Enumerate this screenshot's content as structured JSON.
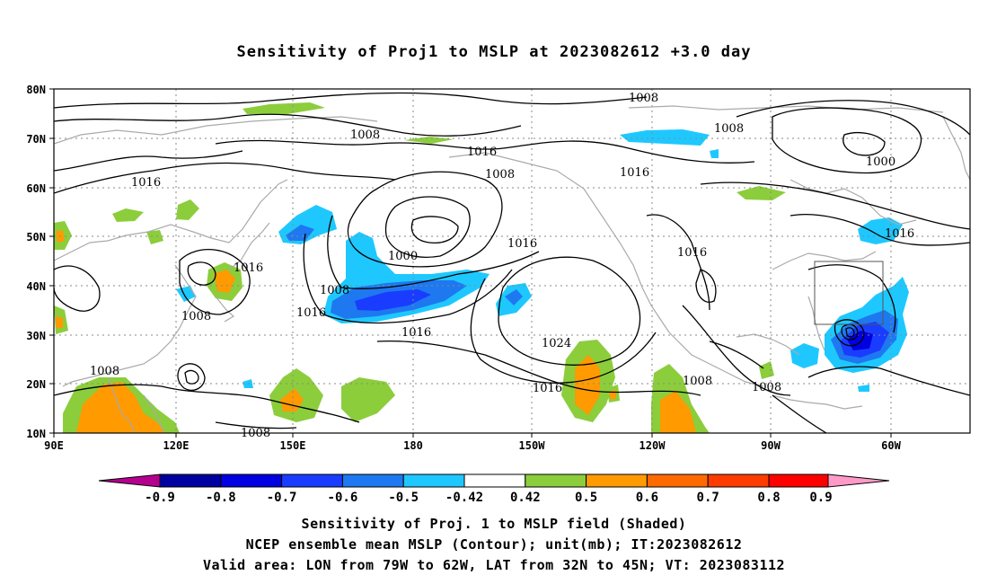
{
  "title": "Sensitivity of Proj1 to MSLP at 2023082612 +3.0 day",
  "lat_ticks": [
    "80N",
    "70N",
    "60N",
    "50N",
    "40N",
    "30N",
    "20N",
    "10N"
  ],
  "lon_ticks": [
    "90E",
    "120E",
    "150E",
    "180",
    "150W",
    "120W",
    "90W",
    "60W"
  ],
  "contour_labels": [
    "1008",
    "1008",
    "1016",
    "1016",
    "1008",
    "1016",
    "1008",
    "1000",
    "1016",
    "1016",
    "1000",
    "1016",
    "1008",
    "1008",
    "1016",
    "1016",
    "1016",
    "1016",
    "1024",
    "1008",
    "1008",
    "1008",
    "1016",
    "1008"
  ],
  "colorbar": {
    "labels": [
      "-0.9",
      "-0.8",
      "-0.7",
      "-0.6",
      "-0.5",
      "-0.42",
      "0.42",
      "0.5",
      "0.6",
      "0.7",
      "0.8",
      "0.9"
    ],
    "colors": [
      "#b5008e",
      "#0000a0",
      "#0000e0",
      "#1a3cff",
      "#1e78f0",
      "#1ec8ff",
      "#ffffff",
      "#8ccd3c",
      "#ff9a00",
      "#ff6a00",
      "#ff3c00",
      "#ff0000",
      "#ff9ac8"
    ]
  },
  "captions": {
    "line1": "Sensitivity of Proj. 1 to MSLP field (Shaded)",
    "line2": "NCEP ensemble mean MSLP (Contour); unit(mb); IT:2023082612",
    "line3": "Valid area: LON from 79W to 62W, LAT from 32N to 45N; VT: 2023083112"
  }
}
